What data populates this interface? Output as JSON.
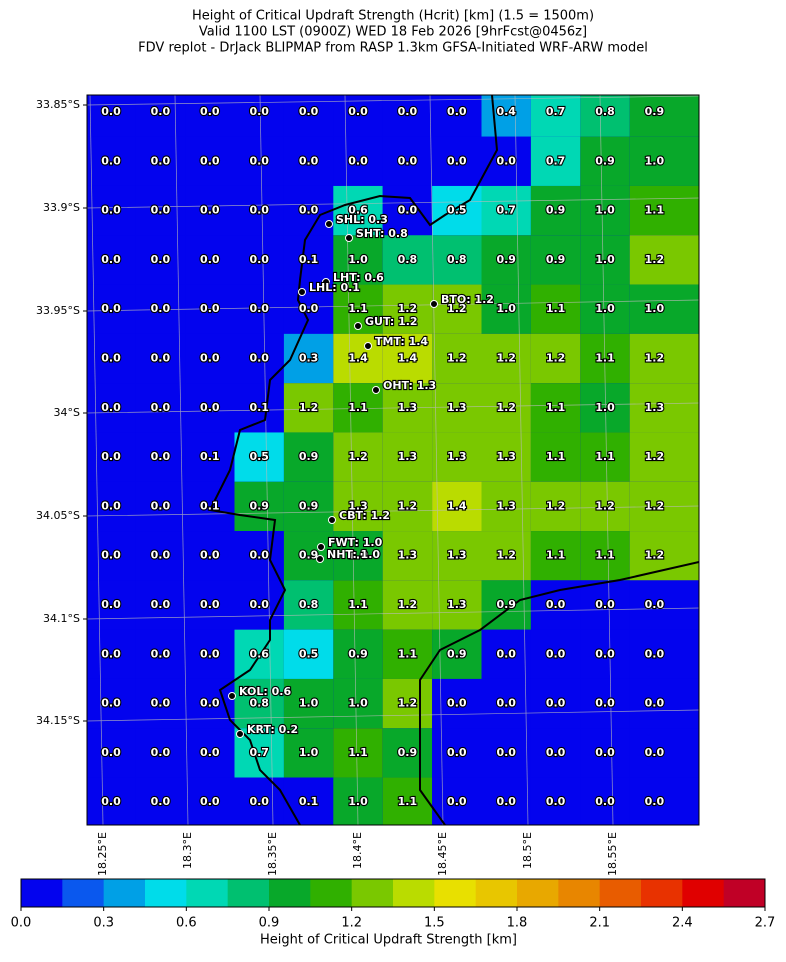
{
  "title_lines": [
    "Height of Critical Updraft Strength (Hcrit) [km] (1.5 = 1500m)",
    "Valid 1100 LST (0900Z) WED 18 Feb 2026 [9hrFcst@0456z]",
    "FDV replot - DrJack BLIPMAP from RASP 1.3km GFSA-Initiated WRF-ARW model"
  ],
  "lat_labels": [
    "33.85°S",
    "33.9°S",
    "33.95°S",
    "34°S",
    "34.05°S",
    "34.1°S",
    "34.15°S"
  ],
  "lon_labels": [
    "18.25°E",
    "18.3°E",
    "18.35°E",
    "18.4°E",
    "18.45°E",
    "18.5°E",
    "18.55°E"
  ],
  "grid": {
    "values": [
      [
        0,
        0,
        0,
        0,
        0,
        0,
        0,
        0,
        0.4,
        0.7,
        0.8,
        0.9
      ],
      [
        0,
        0,
        0,
        0,
        0,
        0,
        0,
        0,
        0,
        0.7,
        0.9,
        1.0
      ],
      [
        0,
        0,
        0,
        0,
        0,
        0.6,
        0,
        0.5,
        0.7,
        0.9,
        1.0,
        1.1
      ],
      [
        0,
        0,
        0,
        0,
        0.1,
        1.0,
        0.8,
        0.8,
        0.9,
        0.9,
        1.0,
        1.2
      ],
      [
        0,
        0,
        0,
        0,
        0,
        1.1,
        1.2,
        1.2,
        1.0,
        1.1,
        1.0,
        1.0
      ],
      [
        0,
        0,
        0,
        0,
        0.3,
        1.4,
        1.4,
        1.2,
        1.2,
        1.2,
        1.1,
        1.2
      ],
      [
        0,
        0,
        0,
        0.1,
        1.2,
        1.1,
        1.3,
        1.3,
        1.2,
        1.1,
        1.0,
        1.3
      ],
      [
        0,
        0,
        0.1,
        0.5,
        0.9,
        1.2,
        1.3,
        1.3,
        1.3,
        1.1,
        1.1,
        1.2
      ],
      [
        0,
        0,
        0.1,
        0.9,
        0.9,
        1.3,
        1.2,
        1.4,
        1.3,
        1.2,
        1.2,
        1.2
      ],
      [
        0,
        0,
        0,
        0,
        0.9,
        1.0,
        1.3,
        1.3,
        1.2,
        1.1,
        1.1,
        1.2
      ],
      [
        0,
        0,
        0,
        0,
        0.8,
        1.1,
        1.2,
        1.3,
        0.9,
        0,
        0,
        0
      ],
      [
        0,
        0,
        0,
        0.6,
        0.5,
        0.9,
        1.1,
        0.9,
        0,
        0,
        0,
        0
      ],
      [
        0,
        0,
        0,
        0.8,
        1.0,
        1.0,
        1.2,
        0,
        0,
        0,
        0,
        0
      ],
      [
        0,
        0,
        0,
        0.7,
        1.0,
        1.1,
        0.9,
        0,
        0,
        0,
        0,
        0
      ],
      [
        0,
        0,
        0,
        0,
        0.1,
        1.0,
        1.1,
        0,
        0,
        0,
        0,
        0
      ]
    ],
    "value_labels": [
      [
        "0.0",
        "0.0",
        "0.0",
        "0.0",
        "0.0",
        "0.0",
        "0.0",
        "0.0",
        "0.4",
        "0.7",
        "0.8",
        "0.9"
      ],
      [
        "0.0",
        "0.0",
        "0.0",
        "0.0",
        "0.0",
        "0.0",
        "0.0",
        "0.0",
        "0.0",
        "0.7",
        "0.9",
        "1.0"
      ],
      [
        "0.0",
        "0.0",
        "0.0",
        "0.0",
        "0.0",
        "0.6",
        "0.0",
        "0.5",
        "0.7",
        "0.9",
        "1.0",
        "1.1"
      ],
      [
        "0.0",
        "0.0",
        "0.0",
        "0.0",
        "0.1",
        "1.0",
        "0.8",
        "0.8",
        "0.9",
        "0.9",
        "1.0",
        "1.2"
      ],
      [
        "0.0",
        "0.0",
        "0.0",
        "0.0",
        "0.0",
        "1.1",
        "1.2",
        "1.2",
        "1.0",
        "1.1",
        "1.0",
        "1.0"
      ],
      [
        "0.0",
        "0.0",
        "0.0",
        "0.0",
        "0.3",
        "1.4",
        "1.4",
        "1.2",
        "1.2",
        "1.2",
        "1.1",
        "1.2"
      ],
      [
        "0.0",
        "0.0",
        "0.0",
        "0.1",
        "1.2",
        "1.1",
        "1.3",
        "1.3",
        "1.2",
        "1.1",
        "1.0",
        "1.3"
      ],
      [
        "0.0",
        "0.0",
        "0.1",
        "0.5",
        "0.9",
        "1.2",
        "1.3",
        "1.3",
        "1.3",
        "1.1",
        "1.1",
        "1.2"
      ],
      [
        "0.0",
        "0.0",
        "0.1",
        "0.9",
        "0.9",
        "1.3",
        "1.2",
        "1.4",
        "1.3",
        "1.2",
        "1.2",
        "1.2"
      ],
      [
        "0.0",
        "0.0",
        "0.0",
        "0.0",
        "0.9",
        "1.0",
        "1.3",
        "1.3",
        "1.2",
        "1.1",
        "1.1",
        "1.2"
      ],
      [
        "0.0",
        "0.0",
        "0.0",
        "0.0",
        "0.8",
        "1.1",
        "1.2",
        "1.3",
        "0.9",
        "0.0",
        "0.0",
        "0.0"
      ],
      [
        "0.0",
        "0.0",
        "0.0",
        "0.6",
        "0.5",
        "0.9",
        "1.1",
        "0.9",
        "0.0",
        "0.0",
        "0.0",
        "0.0"
      ],
      [
        "0.0",
        "0.0",
        "0.0",
        "0.8",
        "1.0",
        "1.0",
        "1.2",
        "0.0",
        "0.0",
        "0.0",
        "0.0",
        "0.0"
      ],
      [
        "0.0",
        "0.0",
        "0.0",
        "0.7",
        "1.0",
        "1.1",
        "0.9",
        "0.0",
        "0.0",
        "0.0",
        "0.0",
        "0.0"
      ],
      [
        "0.0",
        "0.0",
        "0.0",
        "0.0",
        "0.1",
        "1.0",
        "1.1",
        "0.0",
        "0.0",
        "0.0",
        "0.0",
        "0.0"
      ]
    ]
  },
  "sites": [
    "SHL: 0.3",
    "SHT: 0.8",
    "LHT: 0.6",
    "LHL: 0.1",
    "BTO: 1.2",
    "GUT: 1.2",
    "TMT: 1.4",
    "OHT: 1.3",
    "CBT: 1.2",
    "FWT: 1.0",
    "NHT: 1.0",
    "KOL: 0.6",
    "KRT: 0.2"
  ],
  "colorbar": {
    "label": "Height of Critical Updraft Strength [km]",
    "lim": [
      0,
      2.7
    ],
    "colors": [
      "#0303ee",
      "#0a58ee",
      "#00a0e6",
      "#00dcea",
      "#00d8b4",
      "#00c070",
      "#08a82a",
      "#30b000",
      "#7ac800",
      "#badc00",
      "#e8e000",
      "#e8c600",
      "#e8a800",
      "#e88600",
      "#e85c00",
      "#e83200",
      "#e00000",
      "#c00026"
    ],
    "ticks": [
      {
        "value": 0,
        "label": "0.0"
      },
      {
        "value": 0.3,
        "label": "0.3"
      },
      {
        "value": 0.6,
        "label": "0.6"
      },
      {
        "value": 0.9,
        "label": "0.9"
      },
      {
        "value": 1.2,
        "label": "1.2"
      },
      {
        "value": 1.5,
        "label": "1.5"
      },
      {
        "value": 1.8,
        "label": "1.8"
      },
      {
        "value": 2.1,
        "label": "2.1"
      },
      {
        "value": 2.4,
        "label": "2.4"
      },
      {
        "value": 2.7,
        "label": "2.7"
      }
    ]
  }
}
